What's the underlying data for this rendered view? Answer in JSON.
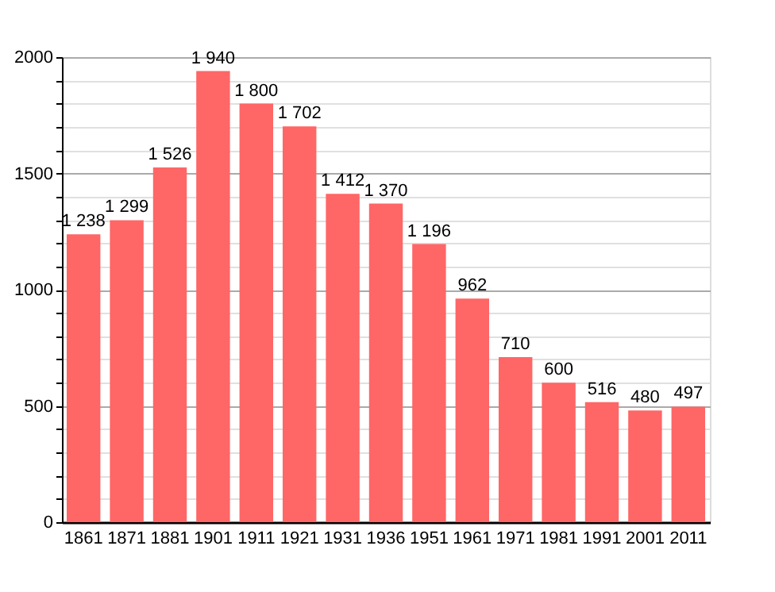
{
  "chart_data": {
    "type": "bar",
    "categories": [
      "1861",
      "1871",
      "1881",
      "1901",
      "1911",
      "1921",
      "1931",
      "1936",
      "1951",
      "1961",
      "1971",
      "1981",
      "1991",
      "2001",
      "2011"
    ],
    "values": [
      1238,
      1299,
      1526,
      1940,
      1800,
      1702,
      1412,
      1370,
      1196,
      962,
      710,
      600,
      516,
      480,
      497
    ],
    "value_labels": [
      "1 238",
      "1 299",
      "1 526",
      "1 940",
      "1 800",
      "1 702",
      "1 412",
      "1 370",
      "1 196",
      "962",
      "710",
      "600",
      "516",
      "480",
      "497"
    ],
    "color": "#ff6666",
    "ylim": [
      0,
      2000
    ],
    "yticks": [
      0,
      {
        "value": 100,
        "label": null
      },
      {
        "value": 200,
        "label": null
      },
      {
        "value": 300,
        "label": null
      },
      {
        "value": 400,
        "label": null
      },
      500,
      {
        "value": 600,
        "label": null
      },
      {
        "value": 700,
        "label": null
      },
      {
        "value": 800,
        "label": null
      },
      {
        "value": 900,
        "label": null
      },
      1000,
      {
        "value": 1100,
        "label": null
      },
      {
        "value": 1200,
        "label": null
      },
      {
        "value": 1300,
        "label": null
      },
      {
        "value": 1400,
        "label": null
      },
      1500,
      {
        "value": 1600,
        "label": null
      },
      {
        "value": 1700,
        "label": null
      },
      {
        "value": 1800,
        "label": null
      },
      {
        "value": 1900,
        "label": null
      },
      2000
    ],
    "grid": "y"
  }
}
